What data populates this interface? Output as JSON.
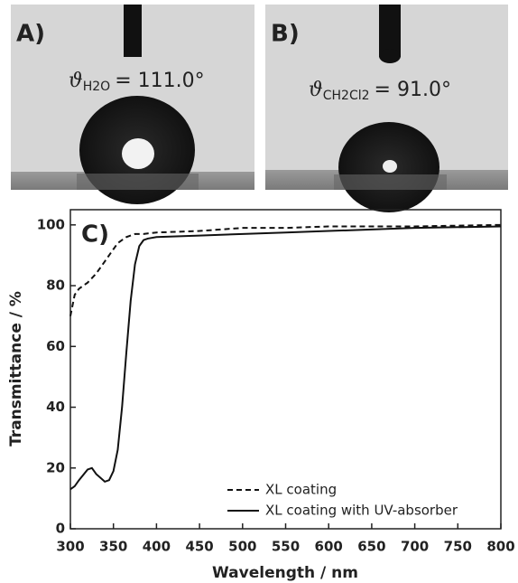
{
  "panels": [
    {
      "label": "A)",
      "symbol": "ϑ",
      "subscript": "H2O",
      "text": "= 111.0°"
    },
    {
      "label": "B)",
      "symbol": "ϑ",
      "subscript": "CH2Cl2",
      "text": "= 91.0°"
    }
  ],
  "chart_data": {
    "type": "line",
    "panel_label": "C)",
    "x_label": "Wavelength / nm",
    "y_label": "Transmittance / %",
    "x": [
      300,
      305,
      310,
      320,
      325,
      330,
      340,
      345,
      350,
      355,
      360,
      365,
      370,
      375,
      380,
      385,
      390,
      400,
      450,
      500,
      550,
      600,
      700,
      800
    ],
    "series": [
      {
        "name": "XL coating",
        "color": "#111111",
        "dash": true,
        "values": [
          70,
          77,
          79,
          81,
          82.5,
          84,
          88,
          90,
          92,
          94,
          95,
          96,
          96.5,
          97,
          97,
          97,
          97.2,
          97.5,
          98,
          99,
          99,
          99.5,
          99.5,
          100
        ]
      },
      {
        "name": "XL coating with UV-absorber",
        "color": "#111111",
        "dash": false,
        "values": [
          13,
          14,
          16,
          19.5,
          20,
          18,
          15.5,
          16,
          19,
          26,
          40,
          58,
          75,
          87,
          93,
          95,
          95.5,
          96,
          96.5,
          97,
          97.5,
          98,
          99,
          99.5
        ]
      }
    ],
    "xlim": [
      300,
      800
    ],
    "xticks": [
      300,
      350,
      400,
      450,
      500,
      550,
      600,
      650,
      700,
      750,
      800
    ],
    "ylim": [
      0,
      105
    ],
    "yticks": [
      0,
      20,
      40,
      60,
      80,
      100
    ],
    "legend": "lower-right"
  }
}
